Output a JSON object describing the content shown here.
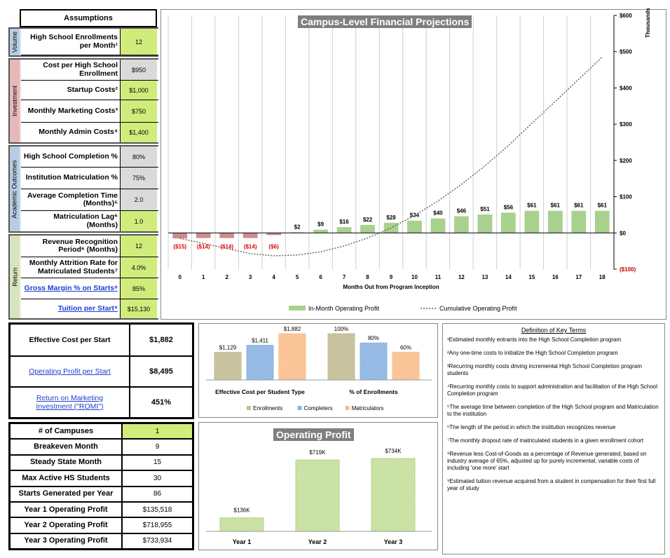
{
  "assumptions": {
    "title": "Assumptions",
    "sections": [
      {
        "name": "Volume",
        "rows": [
          {
            "label": "High School Enrollments per Month¹",
            "value": "12"
          }
        ]
      },
      {
        "name": "Investment",
        "rows": [
          {
            "label": "Cost per High School Enrollment",
            "value": "$950"
          },
          {
            "label": "Startup Costs²",
            "value": "$1,000"
          },
          {
            "label": "Monthly Marketing Costs³",
            "value": "$750"
          },
          {
            "label": "Monthly Admin Costs⁴",
            "value": "$1,400"
          }
        ]
      },
      {
        "name": "Academic Outcomes",
        "rows": [
          {
            "label": "High School Completion %",
            "value": "80%"
          },
          {
            "label": "Institution Matriculation %",
            "value": "75%"
          },
          {
            "label": "Average Completion Time (Months)⁵",
            "value": "2.0"
          },
          {
            "label": "Matriculation Lag⁶ (Months)",
            "value": "1.0"
          }
        ]
      },
      {
        "name": "Return",
        "rows": [
          {
            "label": "Revenue Recognition Period⁶ (Months)",
            "value": "12"
          },
          {
            "label": "Monthly Attrition Rate for Matriculated Students⁷",
            "value": "4.0%"
          },
          {
            "label": "Gross Margin % on Starts⁸",
            "value": "85%"
          },
          {
            "label": "Tuition per Start⁹",
            "value": "$15,130"
          }
        ]
      }
    ]
  },
  "main_chart": {
    "title": "Campus-Level Financial Projections",
    "thousands_label": "Thousands",
    "xlabel": "Months Out from Program Inception",
    "legend": [
      "In-Month Operating Profit",
      "Cumulative Operating Profit"
    ],
    "y_ticks": [
      "$600",
      "$500",
      "$400",
      "$300",
      "$200",
      "$100",
      "$0",
      "($100)"
    ],
    "bar_labels": [
      "($15)",
      "($14)",
      "($14)",
      "($14)",
      "($6)",
      "$2",
      "$9",
      "$16",
      "$22",
      "$28",
      "$34",
      "$40",
      "$46",
      "$51",
      "$56",
      "$61",
      "$61",
      "$61",
      "$61"
    ]
  },
  "chart_data": [
    {
      "type": "bar",
      "title": "Campus-Level Financial Projections",
      "xlabel": "Months Out from Program Inception",
      "ylabel": "Thousands",
      "categories": [
        "0",
        "1",
        "2",
        "3",
        "4",
        "5",
        "6",
        "7",
        "8",
        "9",
        "10",
        "11",
        "12",
        "13",
        "14",
        "15",
        "16",
        "17",
        "18"
      ],
      "ylim": [
        -100,
        600
      ],
      "series": [
        {
          "name": "In-Month Operating Profit",
          "values": [
            -15,
            -14,
            -14,
            -14,
            -6,
            2,
            9,
            16,
            22,
            28,
            34,
            40,
            46,
            51,
            56,
            61,
            61,
            61,
            61
          ]
        },
        {
          "name": "Cumulative Operating Profit",
          "values": [
            -15,
            -29,
            -43,
            -57,
            -63,
            -61,
            -52,
            -36,
            -14,
            14,
            48,
            88,
            134,
            185,
            241,
            302,
            363,
            424,
            485
          ]
        }
      ]
    },
    {
      "type": "bar",
      "categories": [
        "Effective Cost per Student Type",
        "% of Enrollments"
      ],
      "series": [
        {
          "name": "Enrollments",
          "values": [
            1129,
            100
          ],
          "labels": [
            "$1,129",
            "100%"
          ]
        },
        {
          "name": "Completers",
          "values": [
            1411,
            80
          ],
          "labels": [
            "$1,411",
            "80%"
          ]
        },
        {
          "name": "Matriculators",
          "values": [
            1882,
            60
          ],
          "labels": [
            "$1,882",
            "60%"
          ]
        }
      ]
    },
    {
      "type": "bar",
      "title": "Operating Profit",
      "categories": [
        "Year 1",
        "Year 2",
        "Year 3"
      ],
      "values": [
        136,
        719,
        734
      ],
      "labels": [
        "$136K",
        "$719K",
        "$734K"
      ]
    }
  ],
  "kpis": [
    {
      "label": "Effective Cost per Start",
      "value": "$1,882",
      "link": false
    },
    {
      "label": "Operating Profit per Start",
      "value": "$8,495",
      "link": true
    },
    {
      "label": "Return on Marketing Investment (\"ROMI\")",
      "value": "451%",
      "link": true
    }
  ],
  "summary": [
    {
      "label": "# of Campuses",
      "value": "1"
    },
    {
      "label": "Breakeven Month",
      "value": "9"
    },
    {
      "label": "Steady State Month",
      "value": "15"
    },
    {
      "label": "Max Active HS Students",
      "value": "30"
    },
    {
      "label": "Starts Generated per Year",
      "value": "86"
    },
    {
      "label": "Year 1 Operating Profit",
      "value": "$135,518"
    },
    {
      "label": "Year 2 Operating Profit",
      "value": "$718,955"
    },
    {
      "label": "Year 3 Operating Profit",
      "value": "$733,934"
    }
  ],
  "op_chart": {
    "title": "Operating Profit"
  },
  "legend2": [
    "Enrollments",
    "Completers",
    "Matriculators"
  ],
  "definitions": {
    "title": "Definition of Key Terms",
    "items": [
      "¹Estimated monthly entrants into the High School Completion program",
      "²Any one-time costs to initialize the High School Completion program",
      "³Recurring monthly costs driving incremental High School Completion program students",
      "⁴Recurring monthly costs to support administration and facilitation of the High School Completion program",
      "⁵The average time between completion of the High School program and Matriculation to the institution",
      "⁶The length of the period in which the institution recognizes revenue",
      "⁷The monthly dropout rate of matriculated students in a given enrollment cohort",
      "⁸Revenue less Cost-of-Goods as a percentage of Revenue generated; based on industry average of 65%, adjusted up for purely incremental, variable costs of including 'one more' start",
      "⁹Estimated tuition revenue acquired from a student in compensation for their first full year of study"
    ]
  },
  "colors": {
    "bar_green": "#a9d18e",
    "neg_red": "#d08a8a",
    "enroll": "#c4bd97",
    "complete": "#8db4e2",
    "matric": "#fabf8f"
  }
}
